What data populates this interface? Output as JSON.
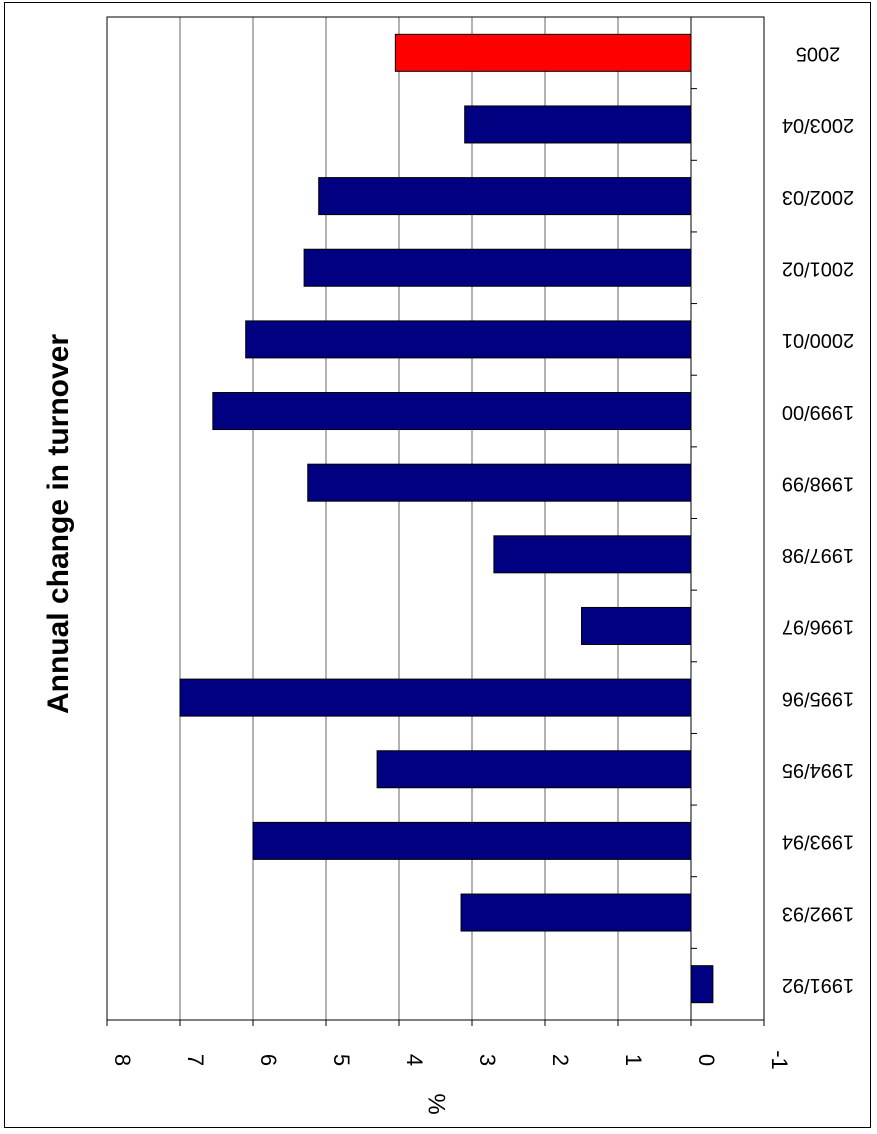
{
  "chart_data": {
    "type": "bar",
    "orientation": "horizontal (rotated 90° page)",
    "title": "Annual change in turnover",
    "xlabel": "",
    "ylabel": "%",
    "ylim": [
      -1,
      8
    ],
    "grid": true,
    "categories": [
      "1991/92",
      "1992/93",
      "1993/94",
      "1994/95",
      "1995/96",
      "1996/97",
      "1997/98",
      "1998/99",
      "1999/00",
      "2000/01",
      "2001/02",
      "2002/03",
      "2003/04",
      "2005"
    ],
    "values": [
      -0.3,
      3.15,
      6.0,
      4.3,
      7.0,
      1.5,
      2.7,
      5.25,
      6.55,
      6.1,
      5.3,
      5.1,
      3.1,
      4.05
    ],
    "ticks": [
      "-1",
      "0",
      "1",
      "2",
      "3",
      "4",
      "5",
      "6",
      "7",
      "8"
    ],
    "colors": {
      "bar": "#000080",
      "highlight_bar": "#FF0000",
      "highlight_category": "2005",
      "gridline": "#000000"
    }
  }
}
